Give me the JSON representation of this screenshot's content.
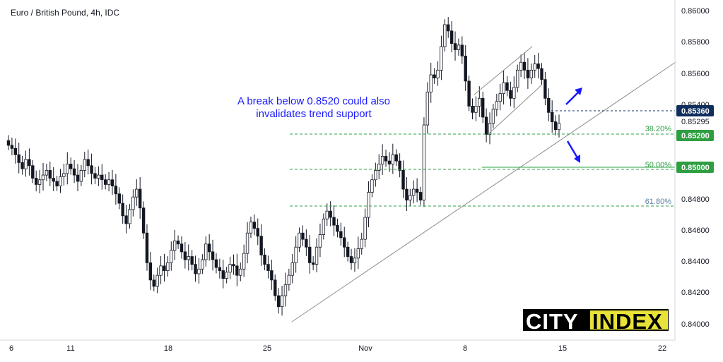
{
  "chart_data": {
    "type": "candlestick",
    "title": "Euro / British Pound, 4h, IDC",
    "x_ticks": [
      "6",
      "11",
      "18",
      "25",
      "Nov",
      "8",
      "15",
      "22"
    ],
    "y_ticks": [
      "0.86000",
      "0.85800",
      "0.85600",
      "0.85400",
      "0.85295",
      "0.84800",
      "0.84600",
      "0.84400",
      "0.84200",
      "0.84000"
    ],
    "ylim": [
      0.8397,
      0.8603
    ],
    "grid": false,
    "close_series": [
      0.8514,
      0.8512,
      0.8508,
      0.8503,
      0.8499,
      0.8505,
      0.8501,
      0.8493,
      0.8489,
      0.8492,
      0.8495,
      0.8498,
      0.8493,
      0.8491,
      0.8488,
      0.8494,
      0.8496,
      0.8502,
      0.8499,
      0.8495,
      0.8491,
      0.8498,
      0.8505,
      0.8501,
      0.8496,
      0.8493,
      0.8495,
      0.8492,
      0.8489,
      0.8492,
      0.8488,
      0.8483,
      0.8477,
      0.8469,
      0.8464,
      0.8473,
      0.8481,
      0.8486,
      0.8474,
      0.8458,
      0.8439,
      0.8428,
      0.8424,
      0.8431,
      0.8437,
      0.8434,
      0.8439,
      0.8447,
      0.8453,
      0.8451,
      0.8446,
      0.8441,
      0.8443,
      0.8438,
      0.8432,
      0.8435,
      0.8441,
      0.8451,
      0.8446,
      0.8441,
      0.8436,
      0.8434,
      0.8429,
      0.8433,
      0.8438,
      0.8437,
      0.8431,
      0.8435,
      0.8445,
      0.8458,
      0.8465,
      0.8461,
      0.8456,
      0.8444,
      0.8438,
      0.8434,
      0.8428,
      0.8418,
      0.8411,
      0.8418,
      0.8425,
      0.8431,
      0.8439,
      0.8449,
      0.8458,
      0.8454,
      0.8449,
      0.8439,
      0.8438,
      0.8449,
      0.8457,
      0.8467,
      0.8472,
      0.8468,
      0.8463,
      0.8459,
      0.8455,
      0.8449,
      0.8443,
      0.8439,
      0.8442,
      0.8448,
      0.8454,
      0.8468,
      0.8484,
      0.8492,
      0.8498,
      0.8502,
      0.8507,
      0.8504,
      0.8502,
      0.8508,
      0.8504,
      0.8498,
      0.8486,
      0.8479,
      0.8482,
      0.8486,
      0.8484,
      0.8479,
      0.8527,
      0.8548,
      0.8559,
      0.8557,
      0.8562,
      0.8577,
      0.8591,
      0.8587,
      0.8579,
      0.8575,
      0.8578,
      0.8571,
      0.8555,
      0.8539,
      0.8535,
      0.8539,
      0.8544,
      0.8532,
      0.8521,
      0.8528,
      0.8537,
      0.8542,
      0.8547,
      0.8554,
      0.8549,
      0.8544,
      0.8551,
      0.8562,
      0.8567,
      0.8562,
      0.8557,
      0.8562,
      0.8566,
      0.8563,
      0.8556,
      0.8544,
      0.8535,
      0.8529,
      0.8524,
      0.8528
    ]
  },
  "annotation": {
    "note_line1": "A break below 0.8520 could also",
    "note_line2": "invalidates trend support"
  },
  "fib_levels": {
    "fib_382": "38.20%",
    "fib_500": "50.00%",
    "fib_618": "61.80%"
  },
  "price_tags": {
    "tag_0_8536": "0.85360",
    "tag_0_8520": "0.85200",
    "tag_0_8500": "0.85000"
  },
  "logo": {
    "logo_city": "CITY",
    "logo_index": "INDEX"
  },
  "colors": {
    "candle": "#131722",
    "fib": "#2ea043",
    "fib_618": "#5c7f9c",
    "blue_note": "#1a1aff",
    "tag_green": "#2e9e41",
    "tag_blue": "#0f2e5c",
    "logo_yellow": "#e8e338"
  }
}
